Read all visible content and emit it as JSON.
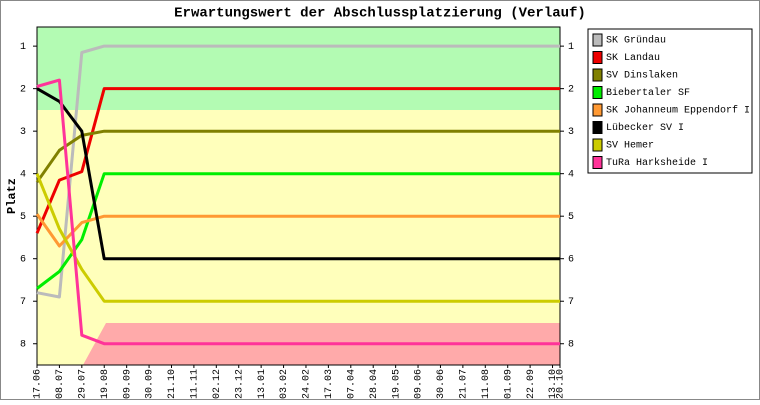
{
  "chart_data": {
    "type": "line",
    "title": "Erwartungswert der Abschlussplatzierung (Verlauf)",
    "y_label": "Platz",
    "x": [
      "17.06",
      "08.07",
      "29.07",
      "19.08",
      "09.09",
      "30.09",
      "21.10",
      "11.11",
      "02.12",
      "23.12",
      "13.01",
      "03.02",
      "24.02",
      "17.03",
      "07.04",
      "28.04",
      "19.05",
      "09.06",
      "30.06",
      "21.07",
      "11.08",
      "01.09",
      "22.09",
      "13.10",
      "20.10"
    ],
    "ylim": [
      0.55,
      8.5
    ],
    "y_inverted": true,
    "yticks": [
      1,
      2,
      3,
      4,
      5,
      6,
      7,
      8
    ],
    "series": [
      {
        "name": "SK Gründau",
        "color": "#bbbbbb",
        "values": [
          6.8,
          6.9,
          1.15,
          1,
          1,
          1,
          1,
          1,
          1,
          1,
          1,
          1,
          1,
          1,
          1,
          1,
          1,
          1,
          1,
          1,
          1,
          1,
          1,
          1,
          1
        ]
      },
      {
        "name": "SK Landau",
        "color": "#ee0000",
        "values": [
          5.4,
          4.15,
          3.95,
          2,
          2,
          2,
          2,
          2,
          2,
          2,
          2,
          2,
          2,
          2,
          2,
          2,
          2,
          2,
          2,
          2,
          2,
          2,
          2,
          2,
          2
        ]
      },
      {
        "name": "SV Dinslaken",
        "color": "#808000",
        "values": [
          4.2,
          3.45,
          3.1,
          3,
          3,
          3,
          3,
          3,
          3,
          3,
          3,
          3,
          3,
          3,
          3,
          3,
          3,
          3,
          3,
          3,
          3,
          3,
          3,
          3,
          3
        ]
      },
      {
        "name": "Biebertaler SF",
        "color": "#00ee00",
        "values": [
          6.7,
          6.3,
          5.55,
          4,
          4,
          4,
          4,
          4,
          4,
          4,
          4,
          4,
          4,
          4,
          4,
          4,
          4,
          4,
          4,
          4,
          4,
          4,
          4,
          4,
          4
        ]
      },
      {
        "name": "SK Johanneum Eppendorf I",
        "color": "#ff9933",
        "values": [
          4.95,
          5.7,
          5.15,
          5,
          5,
          5,
          5,
          5,
          5,
          5,
          5,
          5,
          5,
          5,
          5,
          5,
          5,
          5,
          5,
          5,
          5,
          5,
          5,
          5,
          5
        ]
      },
      {
        "name": "Lübecker SV I",
        "color": "#000000",
        "values": [
          2,
          2.3,
          3,
          6,
          6,
          6,
          6,
          6,
          6,
          6,
          6,
          6,
          6,
          6,
          6,
          6,
          6,
          6,
          6,
          6,
          6,
          6,
          6,
          6,
          6
        ]
      },
      {
        "name": "SV Hemer",
        "color": "#cccc00",
        "values": [
          4,
          5.3,
          6.25,
          7,
          7,
          7,
          7,
          7,
          7,
          7,
          7,
          7,
          7,
          7,
          7,
          7,
          7,
          7,
          7,
          7,
          7,
          7,
          7,
          7,
          7
        ]
      },
      {
        "name": "TuRa Harksheide I",
        "color": "#ff3399",
        "values": [
          1.95,
          1.8,
          7.8,
          8,
          8,
          8,
          8,
          8,
          8,
          8,
          8,
          8,
          8,
          8,
          8,
          8,
          8,
          8,
          8,
          8,
          8,
          8,
          8,
          8,
          8
        ]
      }
    ]
  }
}
